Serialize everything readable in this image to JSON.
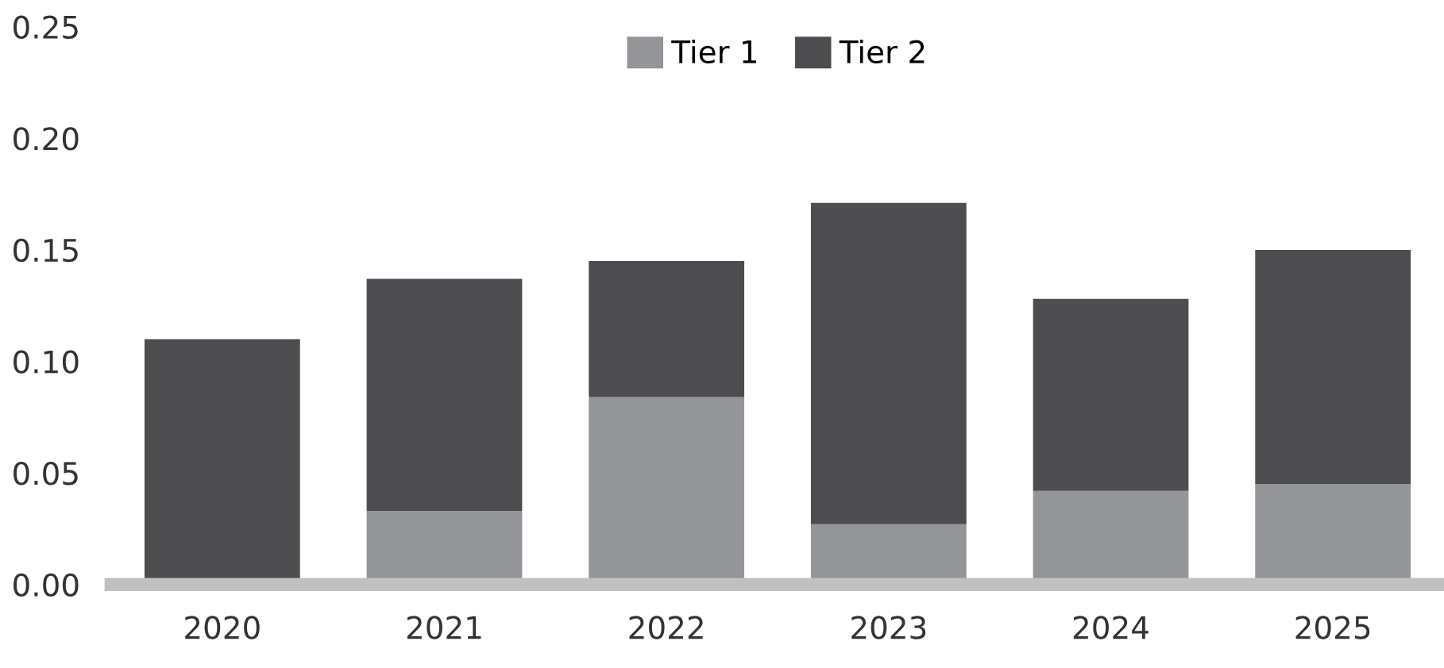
{
  "chart_data": {
    "type": "bar",
    "stacked": true,
    "categories": [
      "2020",
      "2021",
      "2022",
      "2023",
      "2024",
      "2025"
    ],
    "series": [
      {
        "name": "Tier 1",
        "color": "#939598",
        "values": [
          0.0,
          0.033,
          0.084,
          0.027,
          0.042,
          0.045
        ]
      },
      {
        "name": "Tier 2",
        "color": "#4d4d4f",
        "values": [
          0.11,
          0.104,
          0.061,
          0.144,
          0.086,
          0.105
        ]
      }
    ],
    "ylim": [
      0,
      0.25
    ],
    "yticks": [
      {
        "value": 0,
        "label": "0.00"
      },
      {
        "value": 0.05,
        "label": "0.05"
      },
      {
        "value": 0.1,
        "label": "0.10"
      },
      {
        "value": 0.15,
        "label": "0.15"
      },
      {
        "value": 0.2,
        "label": "0.20"
      },
      {
        "value": 0.25,
        "label": "0.25"
      }
    ],
    "grid": false,
    "legend": "top"
  }
}
